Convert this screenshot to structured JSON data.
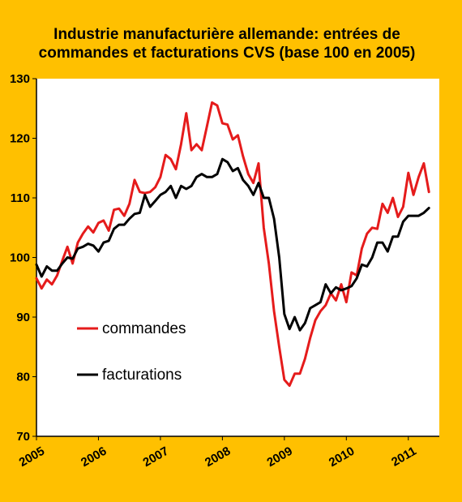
{
  "chart_data": {
    "type": "line",
    "title_line1": "Industrie manufacturière allemande: entrées de",
    "title_line2": "commandes et  facturations  CVS (base 100 en 2005)",
    "xlabel": "",
    "ylabel": "",
    "ylim": [
      70,
      130
    ],
    "yticks": [
      70,
      80,
      90,
      100,
      110,
      120,
      130
    ],
    "xlim": [
      2005.0,
      2011.5
    ],
    "xticks": [
      "2005",
      "2006",
      "2007",
      "2008",
      "2009",
      "2010",
      "2011"
    ],
    "grid": false,
    "legend_placement": "center-left",
    "background_color": "#ffc000",
    "plot_background_color": "#ffffff",
    "series": [
      {
        "name": "commandes",
        "color": "#e51b1b",
        "points": [
          [
            2005.0,
            96.5
          ],
          [
            2005.083,
            94.8
          ],
          [
            2005.167,
            96.3
          ],
          [
            2005.25,
            95.5
          ],
          [
            2005.333,
            97.0
          ],
          [
            2005.417,
            99.5
          ],
          [
            2005.5,
            101.8
          ],
          [
            2005.583,
            99.0
          ],
          [
            2005.667,
            102.5
          ],
          [
            2005.75,
            104.0
          ],
          [
            2005.833,
            105.2
          ],
          [
            2005.917,
            104.2
          ],
          [
            2006.0,
            105.8
          ],
          [
            2006.083,
            106.2
          ],
          [
            2006.167,
            104.5
          ],
          [
            2006.25,
            108.0
          ],
          [
            2006.333,
            108.2
          ],
          [
            2006.417,
            107.0
          ],
          [
            2006.5,
            109.0
          ],
          [
            2006.583,
            113.0
          ],
          [
            2006.667,
            111.0
          ],
          [
            2006.75,
            110.8
          ],
          [
            2006.833,
            111.0
          ],
          [
            2006.917,
            111.8
          ],
          [
            2007.0,
            113.5
          ],
          [
            2007.083,
            117.2
          ],
          [
            2007.167,
            116.5
          ],
          [
            2007.25,
            114.8
          ],
          [
            2007.333,
            119.0
          ],
          [
            2007.417,
            124.2
          ],
          [
            2007.5,
            118.0
          ],
          [
            2007.583,
            119.0
          ],
          [
            2007.667,
            118.0
          ],
          [
            2007.75,
            122.0
          ],
          [
            2007.833,
            126.0
          ],
          [
            2007.917,
            125.5
          ],
          [
            2008.0,
            122.5
          ],
          [
            2008.083,
            122.3
          ],
          [
            2008.167,
            119.8
          ],
          [
            2008.25,
            120.5
          ],
          [
            2008.333,
            117.0
          ],
          [
            2008.417,
            114.0
          ],
          [
            2008.5,
            112.5
          ],
          [
            2008.583,
            115.8
          ],
          [
            2008.667,
            105.0
          ],
          [
            2008.75,
            99.0
          ],
          [
            2008.833,
            91.0
          ],
          [
            2008.917,
            85.0
          ],
          [
            2009.0,
            79.5
          ],
          [
            2009.083,
            78.5
          ],
          [
            2009.167,
            80.5
          ],
          [
            2009.25,
            80.5
          ],
          [
            2009.333,
            83.0
          ],
          [
            2009.417,
            86.5
          ],
          [
            2009.5,
            89.5
          ],
          [
            2009.583,
            91.0
          ],
          [
            2009.667,
            92.0
          ],
          [
            2009.75,
            94.0
          ],
          [
            2009.833,
            92.8
          ],
          [
            2009.917,
            95.5
          ],
          [
            2010.0,
            92.5
          ],
          [
            2010.083,
            97.5
          ],
          [
            2010.167,
            97.0
          ],
          [
            2010.25,
            101.5
          ],
          [
            2010.333,
            104.0
          ],
          [
            2010.417,
            105.0
          ],
          [
            2010.5,
            104.8
          ],
          [
            2010.583,
            109.0
          ],
          [
            2010.667,
            107.5
          ],
          [
            2010.75,
            110.0
          ],
          [
            2010.833,
            106.8
          ],
          [
            2010.917,
            108.5
          ],
          [
            2011.0,
            114.2
          ],
          [
            2011.083,
            110.5
          ],
          [
            2011.167,
            113.5
          ],
          [
            2011.25,
            115.8
          ],
          [
            2011.333,
            111.0
          ]
        ]
      },
      {
        "name": "facturations",
        "color": "#000000",
        "points": [
          [
            2005.0,
            98.8
          ],
          [
            2005.083,
            96.8
          ],
          [
            2005.167,
            98.5
          ],
          [
            2005.25,
            97.8
          ],
          [
            2005.333,
            97.8
          ],
          [
            2005.417,
            99.0
          ],
          [
            2005.5,
            100.0
          ],
          [
            2005.583,
            99.8
          ],
          [
            2005.667,
            101.5
          ],
          [
            2005.75,
            101.8
          ],
          [
            2005.833,
            102.3
          ],
          [
            2005.917,
            102.0
          ],
          [
            2006.0,
            101.0
          ],
          [
            2006.083,
            102.5
          ],
          [
            2006.167,
            102.8
          ],
          [
            2006.25,
            104.8
          ],
          [
            2006.333,
            105.5
          ],
          [
            2006.417,
            105.5
          ],
          [
            2006.5,
            106.5
          ],
          [
            2006.583,
            107.3
          ],
          [
            2006.667,
            107.5
          ],
          [
            2006.75,
            110.5
          ],
          [
            2006.833,
            108.5
          ],
          [
            2006.917,
            109.5
          ],
          [
            2007.0,
            110.5
          ],
          [
            2007.083,
            111.0
          ],
          [
            2007.167,
            112.0
          ],
          [
            2007.25,
            110.0
          ],
          [
            2007.333,
            112.0
          ],
          [
            2007.417,
            111.5
          ],
          [
            2007.5,
            112.0
          ],
          [
            2007.583,
            113.5
          ],
          [
            2007.667,
            114.0
          ],
          [
            2007.75,
            113.5
          ],
          [
            2007.833,
            113.5
          ],
          [
            2007.917,
            114.0
          ],
          [
            2008.0,
            116.5
          ],
          [
            2008.083,
            116.0
          ],
          [
            2008.167,
            114.5
          ],
          [
            2008.25,
            115.0
          ],
          [
            2008.333,
            113.0
          ],
          [
            2008.417,
            112.0
          ],
          [
            2008.5,
            110.5
          ],
          [
            2008.583,
            112.5
          ],
          [
            2008.667,
            110.0
          ],
          [
            2008.75,
            110.0
          ],
          [
            2008.833,
            106.5
          ],
          [
            2008.917,
            100.0
          ],
          [
            2009.0,
            90.5
          ],
          [
            2009.083,
            88.0
          ],
          [
            2009.167,
            90.0
          ],
          [
            2009.25,
            87.8
          ],
          [
            2009.333,
            89.0
          ],
          [
            2009.417,
            91.5
          ],
          [
            2009.5,
            92.0
          ],
          [
            2009.583,
            92.5
          ],
          [
            2009.667,
            95.5
          ],
          [
            2009.75,
            94.0
          ],
          [
            2009.833,
            95.0
          ],
          [
            2009.917,
            94.5
          ],
          [
            2010.0,
            94.8
          ],
          [
            2010.083,
            95.2
          ],
          [
            2010.167,
            96.5
          ],
          [
            2010.25,
            98.8
          ],
          [
            2010.333,
            98.5
          ],
          [
            2010.417,
            100.0
          ],
          [
            2010.5,
            102.5
          ],
          [
            2010.583,
            102.5
          ],
          [
            2010.667,
            101.0
          ],
          [
            2010.75,
            103.5
          ],
          [
            2010.833,
            103.5
          ],
          [
            2010.917,
            106.0
          ],
          [
            2011.0,
            107.0
          ],
          [
            2011.083,
            107.0
          ],
          [
            2011.167,
            107.0
          ],
          [
            2011.25,
            107.5
          ],
          [
            2011.333,
            108.3
          ]
        ]
      }
    ]
  }
}
